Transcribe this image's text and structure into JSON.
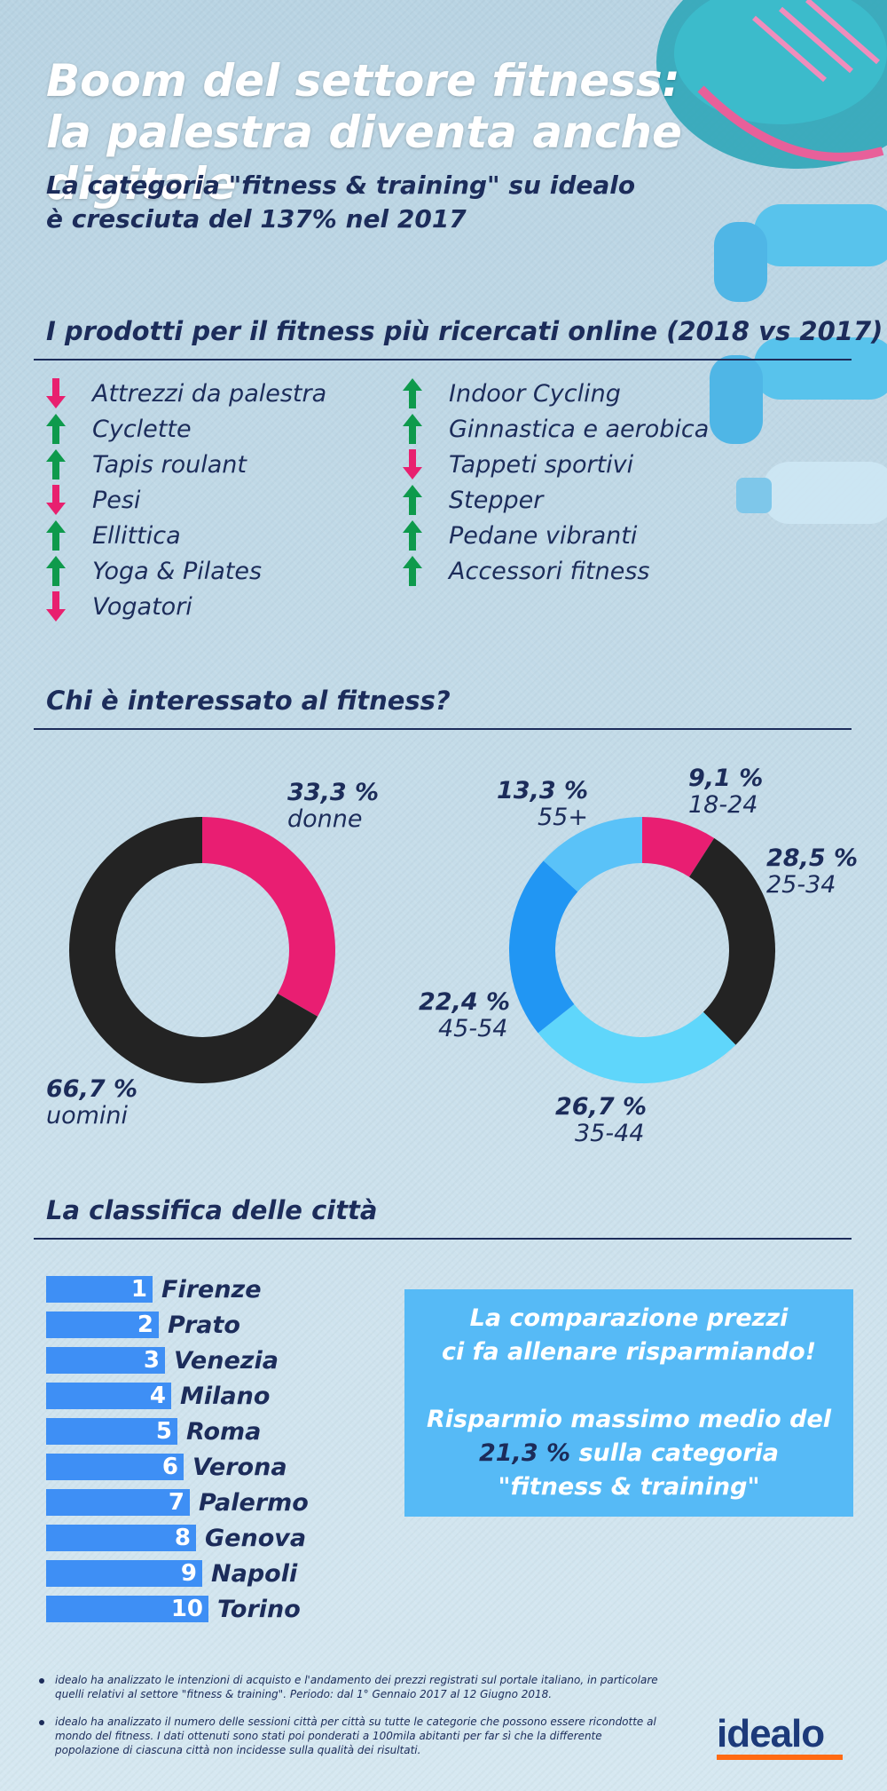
{
  "header": {
    "title_line1": "Boom del settore fitness:",
    "title_line2": "la palestra diventa anche digitale",
    "subtitle_line1": "La categoria \"fitness & training\" su idealo",
    "subtitle_line2": "è cresciuta del 137% nel 2017"
  },
  "products": {
    "heading": "I prodotti per il fitness più ricercati online (2018 vs 2017)",
    "left": [
      {
        "label": "Attrezzi da palestra",
        "trend": "down"
      },
      {
        "label": "Cyclette",
        "trend": "up"
      },
      {
        "label": "Tapis roulant",
        "trend": "up"
      },
      {
        "label": "Pesi",
        "trend": "down"
      },
      {
        "label": "Ellittica",
        "trend": "up"
      },
      {
        "label": "Yoga & Pilates",
        "trend": "up"
      },
      {
        "label": "Vogatori",
        "trend": "down"
      }
    ],
    "right": [
      {
        "label": "Indoor Cycling",
        "trend": "up"
      },
      {
        "label": "Ginnastica e aerobica",
        "trend": "up"
      },
      {
        "label": "Tappeti sportivi",
        "trend": "down"
      },
      {
        "label": "Stepper",
        "trend": "up"
      },
      {
        "label": "Pedane vibranti",
        "trend": "up"
      },
      {
        "label": "Accessori fitness",
        "trend": "up"
      }
    ],
    "colors": {
      "up": "#0e9a4c",
      "down": "#e8206f"
    }
  },
  "audience": {
    "heading": "Chi è interessato al fitness?"
  },
  "chart_data": [
    {
      "type": "pie",
      "variant": "donut",
      "categories": [
        "donne",
        "uomini"
      ],
      "values": [
        33.3,
        66.7
      ],
      "value_labels": [
        "33,3 %",
        "66,7 %"
      ],
      "colors": [
        "#e91e72",
        "#232323"
      ]
    },
    {
      "type": "pie",
      "variant": "donut",
      "categories": [
        "18-24",
        "25-34",
        "35-44",
        "45-54",
        "55+"
      ],
      "values": [
        9.1,
        28.5,
        26.7,
        22.4,
        13.3
      ],
      "value_labels": [
        "9,1 %",
        "28,5 %",
        "26,7 %",
        "22,4 %",
        "13,3 %"
      ],
      "colors": [
        "#e91e72",
        "#232323",
        "#5fd6fb",
        "#2196f3",
        "#5ac2f8"
      ]
    },
    {
      "type": "bar",
      "orientation": "horizontal",
      "categories": [
        "Firenze",
        "Prato",
        "Venezia",
        "Milano",
        "Roma",
        "Verona",
        "Palermo",
        "Genova",
        "Napoli",
        "Torino"
      ],
      "values": [
        1,
        2,
        3,
        4,
        5,
        6,
        7,
        8,
        9,
        10
      ],
      "value_labels": [
        "1",
        "2",
        "3",
        "4",
        "5",
        "6",
        "7",
        "8",
        "9",
        "10"
      ],
      "colors": [
        "#3e8ff5"
      ]
    }
  ],
  "ranking": {
    "heading": "La classifica delle città"
  },
  "promo": {
    "line1": "La comparazione prezzi",
    "line2": "ci fa allenare risparmiando!",
    "line3": "Risparmio massimo medio del",
    "highlight": "21,3 %",
    "line4_rest": " sulla categoria",
    "line5": "\"fitness & training\""
  },
  "notes": [
    "idealo ha analizzato le intenzioni di acquisto e l'andamento dei prezzi registrati sul portale italiano, in particolare quelli relativi al settore \"fitness & training\". Periodo: dal 1° Gennaio 2017 al 12 Giugno 2018.",
    "idealo ha analizzato il numero delle sessioni città per città su tutte le categorie che possono essere ricondotte al mondo del fitness. I dati ottenuti sono stati poi ponderati a 100mila abitanti per far sì che la differente popolazione di ciascuna città non incidesse sulla qualità dei risultati."
  ],
  "brand": {
    "logo": "idealo",
    "accent": "#ff6a13"
  }
}
